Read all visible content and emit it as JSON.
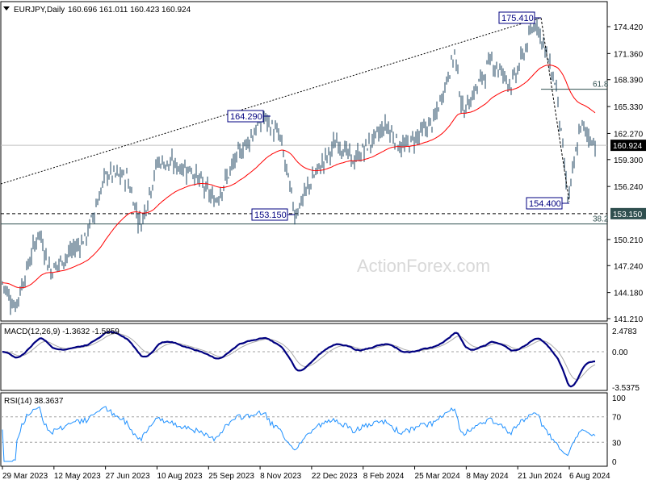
{
  "chart_data": {
    "type": "ohlc",
    "symbol": "EURJPY",
    "timeframe": "Daily",
    "header": {
      "symbol_tf": "EURJPY,Daily",
      "ohlc": "160.696 161.011 160.423 160.924"
    },
    "watermark": "ActionForex.com",
    "price_axis": {
      "ticks": [
        "174.420",
        "171.360",
        "168.390",
        "165.330",
        "162.270",
        "159.300",
        "156.240",
        "150.210",
        "147.240",
        "144.180",
        "141.210"
      ],
      "range": [
        141.21,
        174.42
      ]
    },
    "current_price": "160.924",
    "support_tag": "153.150",
    "x_axis": {
      "ticks": [
        "29 Mar 2023",
        "12 May 2023",
        "27 Jun 2023",
        "10 Aug 2023",
        "25 Sep 2023",
        "8 Nov 2023",
        "22 Dec 2023",
        "8 Feb 2024",
        "25 Mar 2024",
        "8 May 2024",
        "21 Jun 2024",
        "6 Aug 2024"
      ]
    },
    "close_waypoints": [
      [
        "2023-03-29",
        145.3
      ],
      [
        "2023-04-09",
        142.5
      ],
      [
        "2023-04-30",
        151.2
      ],
      [
        "2023-05-10",
        146.6
      ],
      [
        "2023-06-10",
        150.4
      ],
      [
        "2023-06-28",
        157.7
      ],
      [
        "2023-07-16",
        157.3
      ],
      [
        "2023-07-28",
        151.8
      ],
      [
        "2023-08-12",
        159.1
      ],
      [
        "2023-09-10",
        158.2
      ],
      [
        "2023-10-01",
        154.5
      ],
      [
        "2023-10-22",
        160.0
      ],
      [
        "2023-11-13",
        164.1
      ],
      [
        "2023-11-27",
        161.8
      ],
      [
        "2023-12-10",
        153.1
      ],
      [
        "2023-12-26",
        157.3
      ],
      [
        "2024-01-16",
        161.4
      ],
      [
        "2024-01-30",
        159.1
      ],
      [
        "2024-02-28",
        163.2
      ],
      [
        "2024-03-13",
        160.5
      ],
      [
        "2024-04-10",
        163.7
      ],
      [
        "2024-04-28",
        171.5
      ],
      [
        "2024-05-05",
        164.6
      ],
      [
        "2024-05-30",
        170.6
      ],
      [
        "2024-06-17",
        167.8
      ],
      [
        "2024-07-08",
        175.2
      ],
      [
        "2024-07-26",
        167.4
      ],
      [
        "2024-08-05",
        154.5
      ],
      [
        "2024-08-16",
        163.2
      ],
      [
        "2024-08-30",
        160.9
      ]
    ],
    "annotations": {
      "high_label": "175.410",
      "swing_high_label": "164.290",
      "low_label": "154.400",
      "swing_low_label": "153.150",
      "fib_618": "61.8",
      "fib_382": "38.2",
      "fib_618_level": 167.3,
      "fib_382_level": 151.98,
      "support_level": 153.15
    },
    "moving_average": {
      "color": "#ff0000"
    },
    "macd": {
      "label": "MACD(12,26,9) -1.3632 -1.5859",
      "ticks": [
        "2.4783",
        "0.00",
        "-3.5375"
      ],
      "range": [
        -3.5375,
        2.4783
      ]
    },
    "rsi": {
      "label": "RSI(14) 38.3637",
      "ticks": [
        "100",
        "70",
        "30",
        "0"
      ],
      "levels": [
        70,
        30
      ]
    },
    "colors": {
      "bars": "#1f4660",
      "macd": "#000080",
      "signal": "#a9a9a9",
      "rsi": "#1e90ff",
      "ma": "#ff0000"
    }
  }
}
